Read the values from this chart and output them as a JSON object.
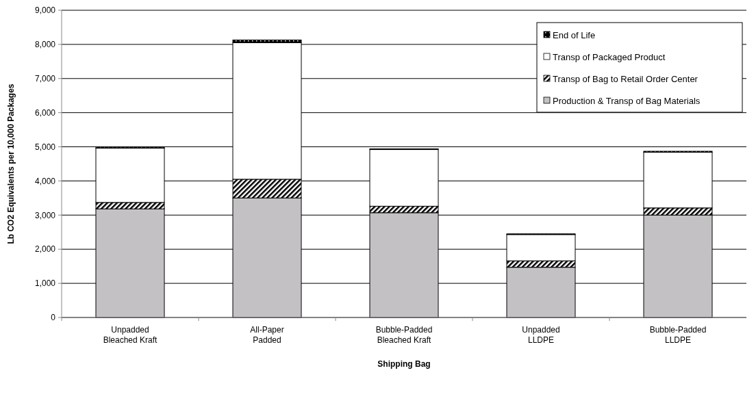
{
  "chart_data": {
    "type": "bar",
    "stacked": true,
    "xlabel": "Shipping Bag",
    "ylabel": "Lb CO2 Equivalents per 10,000 Packages",
    "categories": [
      "Unpadded\nBleached Kraft",
      "All-Paper\nPadded",
      "Bubble-Padded\nBleached Kraft",
      "Unpadded\nLLDPE",
      "Bubble-Padded\nLLDPE"
    ],
    "series": [
      {
        "name": "Production & Transp of Bag Materials",
        "color": "#c3c1c4",
        "values": [
          3180,
          3500,
          3070,
          1470,
          3000
        ]
      },
      {
        "name": "Transp of Bag to Retail Order Center",
        "color": "#000000",
        "values": [
          190,
          550,
          190,
          190,
          210
        ]
      },
      {
        "name": "Transp of Packaged Product",
        "color": "#ffffff",
        "values": [
          1590,
          4000,
          1660,
          770,
          1630
        ]
      },
      {
        "name": "End of Life",
        "color": "#000000",
        "values": [
          30,
          80,
          20,
          20,
          30
        ]
      }
    ],
    "ylim": [
      0,
      9000
    ],
    "yticks": [
      {
        "value": 0,
        "label": "0"
      },
      {
        "value": 1000,
        "label": "1,000"
      },
      {
        "value": 2000,
        "label": "2,000"
      },
      {
        "value": 3000,
        "label": "3,000"
      },
      {
        "value": 4000,
        "label": "4,000"
      },
      {
        "value": 5000,
        "label": "5,000"
      },
      {
        "value": 6000,
        "label": "6,000"
      },
      {
        "value": 7000,
        "label": "7,000"
      },
      {
        "value": 8000,
        "label": "8,000"
      },
      {
        "value": 9000,
        "label": "9,000"
      }
    ],
    "grid": "y",
    "legend": "top right"
  }
}
